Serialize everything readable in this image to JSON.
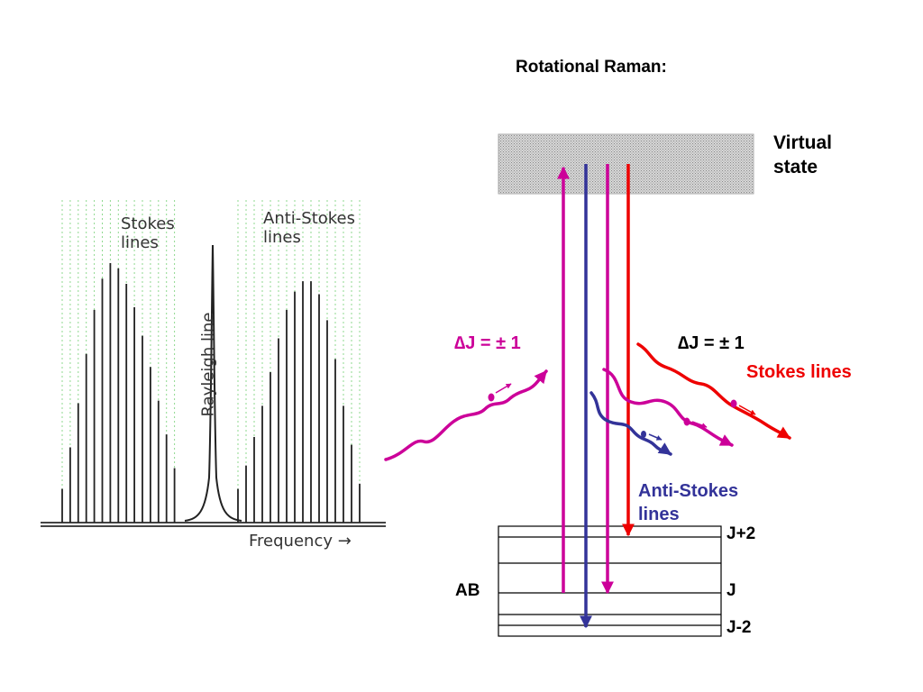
{
  "title": "Rotational Raman:",
  "virtual_state": {
    "line1": "Virtual",
    "line2": "state"
  },
  "spectrum": {
    "stokes_label": [
      "Stokes",
      "lines"
    ],
    "antistokes_label": [
      "Anti-Stokes",
      "lines"
    ],
    "rayleigh_label": "Rayleigh  line",
    "frequency_label": "Frequency  →",
    "stokes_intensities": [
      0.13,
      0.29,
      0.46,
      0.65,
      0.82,
      0.94,
      1.0,
      0.98,
      0.92,
      0.83,
      0.72,
      0.6,
      0.47,
      0.34,
      0.21
    ],
    "antistokes_intensities": [
      0.13,
      0.22,
      0.33,
      0.45,
      0.58,
      0.71,
      0.82,
      0.89,
      0.93,
      0.93,
      0.88,
      0.78,
      0.63,
      0.45,
      0.3,
      0.15
    ],
    "rayleigh_intensity": 1.0
  },
  "left_transition": {
    "label": "∆J = ± 1",
    "color": "#cc0099"
  },
  "right_transition": {
    "label": "∆J = ± 1",
    "stokes_label": "Stokes lines",
    "color": "#ee0000"
  },
  "antistokes_label": {
    "line1": "Anti-Stokes",
    "line2": "lines",
    "color": "#333399"
  },
  "levels": {
    "upper": "J+2",
    "middle": "J",
    "lower": "J-2",
    "molecule": "AB"
  },
  "colors": {
    "stokes": "#ee0000",
    "antistokes": "#333399",
    "rayleigh": "#cc0099",
    "virtual_fill": "#c8c8c8"
  }
}
